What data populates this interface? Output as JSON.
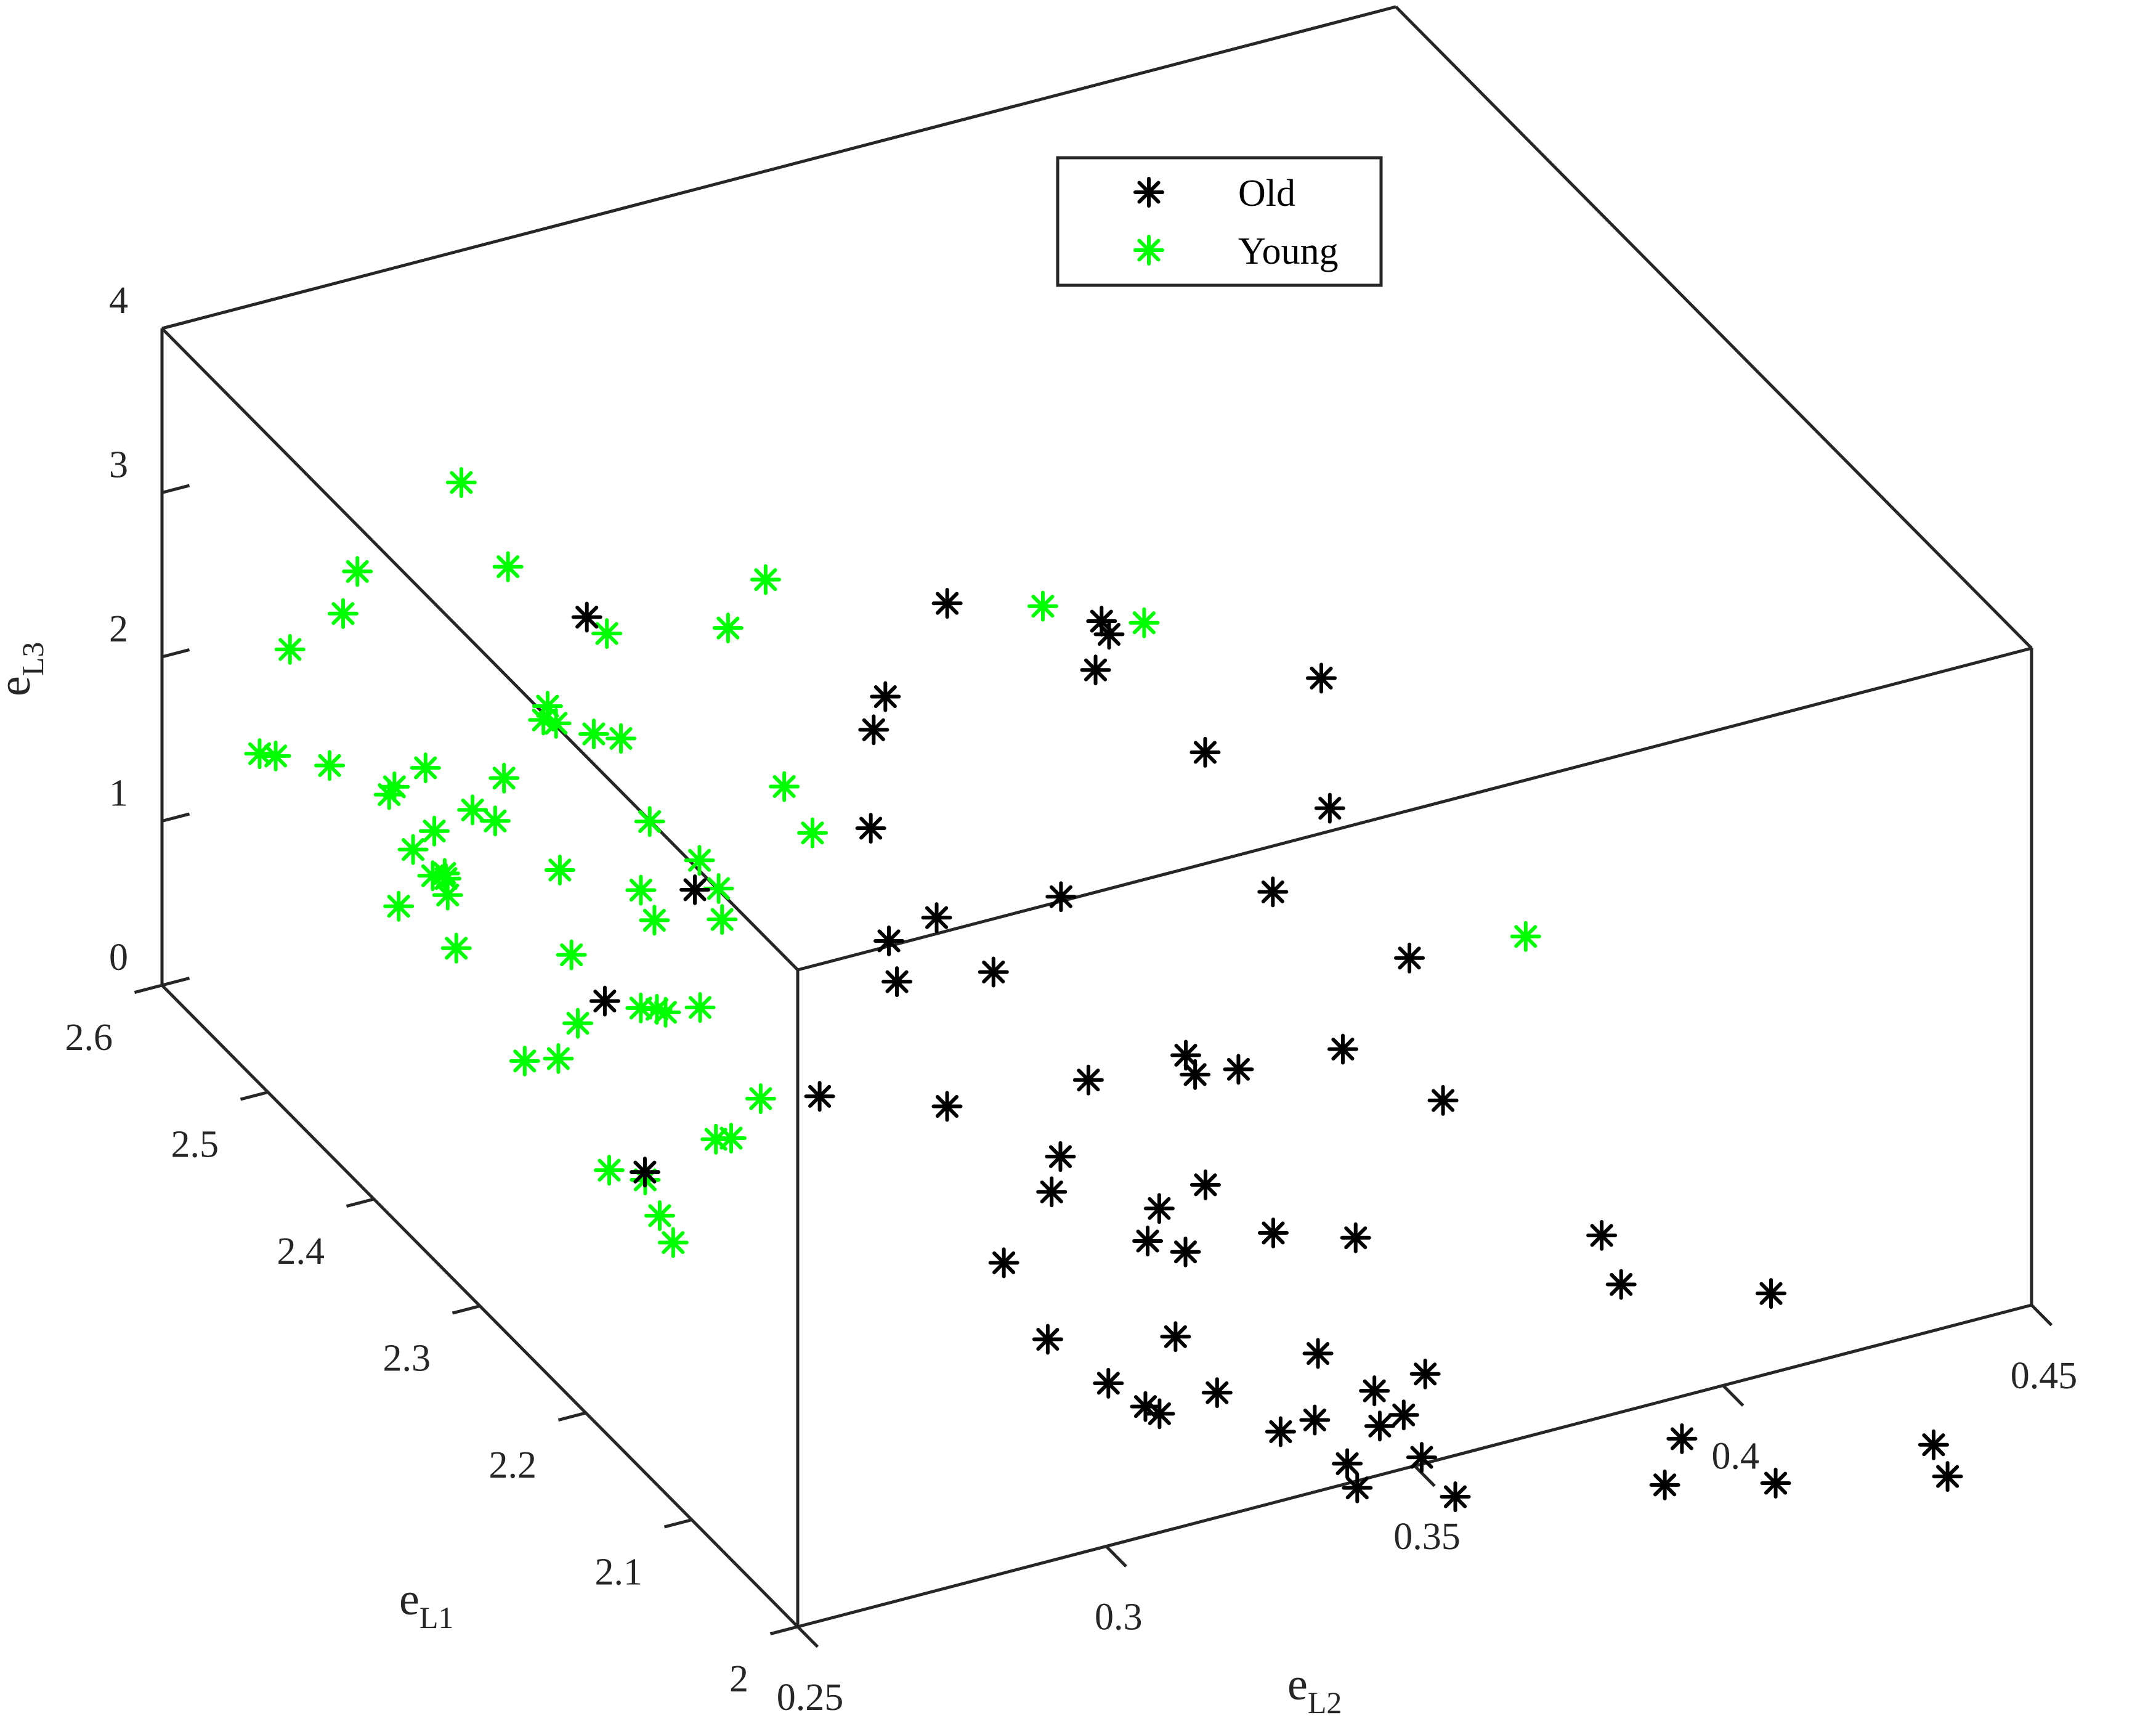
{
  "chart_data": {
    "type": "scatter3d",
    "axes": {
      "x": {
        "label_main": "e",
        "label_sub": "L2",
        "range": [
          0.25,
          0.45
        ],
        "ticks": [
          0.25,
          0.3,
          0.35,
          0.4,
          0.45
        ],
        "tick_labels": [
          "0.25",
          "0.3",
          "0.35",
          "0.4",
          "0.45"
        ]
      },
      "y": {
        "label_main": "e",
        "label_sub": "L1",
        "range": [
          2,
          2.6
        ],
        "ticks": [
          2,
          2.1,
          2.2,
          2.3,
          2.4,
          2.5,
          2.6
        ],
        "tick_labels": [
          "2",
          "2.1",
          "2.2",
          "2.3",
          "2.4",
          "2.5",
          "2.6"
        ]
      },
      "z": {
        "label_main": "e",
        "label_sub": "L3",
        "range": [
          0,
          4
        ],
        "ticks": [
          0,
          1,
          2,
          3,
          4
        ],
        "tick_labels": [
          "0",
          "1",
          "2",
          "3",
          "4"
        ]
      }
    },
    "grid": false,
    "box": true,
    "legend_position": "top-center",
    "marker": "*",
    "series": [
      {
        "name": "Old",
        "color": "#000000",
        "points_projected": [
          [
            0.3476,
            2.2815,
            3.3352
          ],
          [
            0.3545,
            2.3146,
            2.9719
          ],
          [
            0.3804,
            2.2651,
            2.7738
          ],
          [
            0.3432,
            2.4016,
            2.7048
          ],
          [
            0.3599,
            2.3588,
            2.4144
          ],
          [
            0.3676,
            2.3002,
            2.2187
          ],
          [
            0.3344,
            2.4087,
            2.1767
          ],
          [
            0.3796,
            2.2524,
            2.0719
          ],
          [
            0.3312,
            2.4011,
            2.0557
          ],
          [
            0.3031,
            2.5082,
            2.3195
          ],
          [
            0.3699,
            2.2497,
            1.6752
          ],
          [
            0.3828,
            2.1959,
            1.4961
          ],
          [
            0.3274,
            2.3817,
            1.6196
          ],
          [
            0.3455,
            2.3076,
            1.5077
          ],
          [
            0.3311,
            2.3411,
            1.3032
          ],
          [
            0.3707,
            2.1883,
            1.1095
          ],
          [
            0.3794,
            2.1444,
            0.9974
          ],
          [
            0.3241,
            2.3454,
            1.2022
          ],
          [
            0.3344,
            2.3067,
            1.1637
          ],
          [
            0.3575,
            2.21,
            0.9745
          ],
          [
            0.3522,
            2.22,
            0.9292
          ],
          [
            0.3521,
            2.2282,
            0.9946
          ],
          [
            0.3045,
            2.4144,
            1.2564
          ],
          [
            0.3231,
            2.332,
            1.0508
          ],
          [
            0.34,
            2.2497,
            0.8222
          ],
          [
            0.3909,
            2.0616,
            0.6022
          ],
          [
            0.4072,
            1.9967,
            0.5113
          ],
          [
            0.3906,
            2.0415,
            0.4375
          ],
          [
            0.3222,
            2.2794,
            0.6426
          ],
          [
            0.3479,
            2.1852,
            0.5265
          ],
          [
            0.3623,
            2.1273,
            0.4401
          ],
          [
            0.3327,
            2.2336,
            0.5322
          ],
          [
            0.288,
            2.4033,
            0.8123
          ],
          [
            0.3081,
            2.3176,
            0.593
          ],
          [
            0.3537,
            2.155,
            0.3734
          ],
          [
            0.3419,
            2.1939,
            0.3845
          ],
          [
            0.3303,
            2.2279,
            0.3779
          ],
          [
            0.3425,
            2.1726,
            0.253
          ],
          [
            0.3386,
            2.1856,
            0.2729
          ],
          [
            0.4171,
            1.9009,
            0.1167
          ],
          [
            0.4173,
            1.8889,
            0.0
          ],
          [
            0.3631,
            2.0663,
            0.0
          ],
          [
            0.3519,
            2.1023,
            0.0
          ],
          [
            0.3202,
            2.2142,
            0.1342
          ],
          [
            0.3357,
            2.1424,
            0.0
          ],
          [
            0.3879,
            1.9684,
            0.0
          ],
          [
            0.3544,
            2.0636,
            0.0
          ],
          [
            0.3943,
            1.9172,
            0.0
          ],
          [
            0.3189,
            2.1652,
            0.0
          ],
          [
            0.3551,
            2.04,
            0.0
          ],
          [
            0.3339,
            2.0927,
            0.0
          ],
          [
            0.3506,
            2.0364,
            0.0
          ],
          [
            0.3798,
            1.9374,
            0.0
          ],
          [
            0.343,
            2.0535,
            0.0
          ],
          [
            0.3211,
            2.1208,
            0.0
          ],
          [
            0.352,
            2.005,
            0.0
          ],
          [
            0.3371,
            2.0514,
            0.0
          ],
          [
            0.3229,
            2.0963,
            0.0
          ],
          [
            0.3238,
            2.0882,
            0.0
          ],
          [
            0.3416,
            2.0147,
            0.0
          ],
          [
            0.3513,
            1.9692,
            0.0
          ],
          [
            0.3398,
            1.9948,
            0.0
          ],
          [
            0.28,
            2.3189,
            0.3987
          ]
        ]
      },
      {
        "name": "Young",
        "color": "#00ff00",
        "points_projected": [
          [
            0.3512,
            2.2623,
            3.4149
          ],
          [
            0.3416,
            2.302,
            3.3514
          ],
          [
            0.3188,
            2.4309,
            2.8974
          ],
          [
            0.2917,
            2.5603,
            2.912
          ],
          [
            0.3141,
            2.439,
            2.5962
          ],
          [
            0.2943,
            2.5314,
            2.5616
          ],
          [
            0.3922,
            2.1409,
            1.8936
          ],
          [
            0.2786,
            2.5821,
            2.3564
          ],
          [
            0.3038,
            2.4934,
            2.3093
          ],
          [
            0.2765,
            2.5834,
            2.1123
          ],
          [
            0.295,
            2.4981,
            1.9224
          ],
          [
            0.2952,
            2.4913,
            1.8604
          ],
          [
            0.2989,
            2.4772,
            1.8512
          ],
          [
            0.294,
            2.4962,
            1.8605
          ],
          [
            0.3015,
            2.4667,
            1.8665
          ],
          [
            0.3172,
            2.404,
            1.8282
          ],
          [
            0.2694,
            2.5922,
            1.9061
          ],
          [
            0.3192,
            2.389,
            1.6237
          ],
          [
            0.3025,
            2.4454,
            1.4894
          ],
          [
            0.2885,
            2.5014,
            1.5266
          ],
          [
            0.2804,
            2.5283,
            1.4934
          ],
          [
            0.3065,
            2.4217,
            1.3684
          ],
          [
            0.3074,
            2.4089,
            1.2711
          ],
          [
            0.2762,
            2.5332,
            1.3868
          ],
          [
            0.2838,
            2.5037,
            1.3637
          ],
          [
            0.2857,
            2.4934,
            1.3451
          ],
          [
            0.2699,
            2.5577,
            1.4186
          ],
          [
            0.2753,
            2.5329,
            1.35
          ],
          [
            0.2645,
            2.5771,
            1.4033
          ],
          [
            0.2627,
            2.5818,
            1.4045
          ],
          [
            0.2987,
            2.4316,
            1.1988
          ],
          [
            0.3063,
            2.3992,
            1.1567
          ],
          [
            0.2906,
            2.4609,
            1.2097
          ],
          [
            0.2783,
            2.5078,
            1.2622
          ],
          [
            0.2988,
            2.4194,
            1.0941
          ],
          [
            0.2751,
            2.5092,
            1.1722
          ],
          [
            0.2775,
            2.4933,
            1.1064
          ],
          [
            0.2774,
            2.4915,
            1.0878
          ],
          [
            0.2761,
            2.4965,
            1.0851
          ],
          [
            0.2769,
            2.487,
            1.0215
          ],
          [
            0.2881,
            2.4354,
            0.8839
          ],
          [
            0.2711,
            2.4995,
            0.9291
          ],
          [
            0.3,
            2.3833,
            0.7861
          ],
          [
            0.2959,
            2.392,
            0.7401
          ],
          [
            0.2951,
            2.3955,
            0.7432
          ],
          [
            0.2933,
            2.4002,
            0.7381
          ],
          [
            0.2756,
            2.4713,
            0.8131
          ],
          [
            0.2859,
            2.4166,
            0.6111
          ],
          [
            0.3029,
            2.343,
            0.4648
          ],
          [
            0.2823,
            2.414,
            0.4484
          ],
          [
            0.2786,
            2.4242,
            0.4034
          ],
          [
            0.2981,
            2.3429,
            0.2719
          ],
          [
            0.2964,
            2.3474,
            0.2524
          ],
          [
            0.284,
            2.3759,
            0.0
          ],
          [
            0.2874,
            2.3617,
            0.0
          ],
          [
            0.2847,
            2.3323,
            0.0
          ],
          [
            0.283,
            2.3097,
            0.0
          ]
        ]
      }
    ]
  },
  "legend": {
    "items": [
      {
        "label": "Old",
        "color": "#000000"
      },
      {
        "label": "Young",
        "color": "#00ff00"
      }
    ]
  }
}
